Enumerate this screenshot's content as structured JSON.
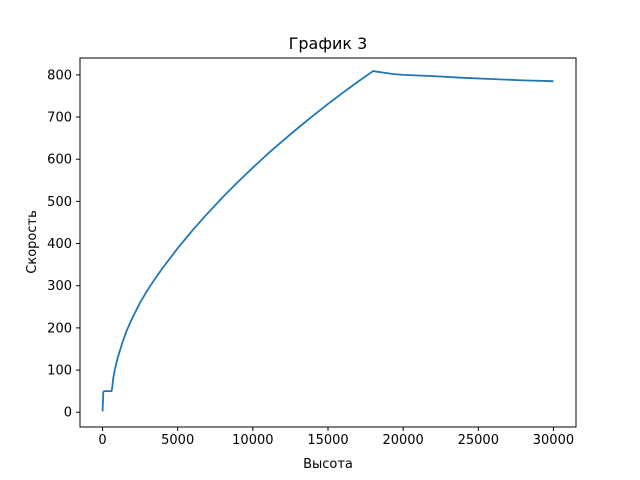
{
  "chart_data": {
    "type": "line",
    "title": "График 3",
    "xlabel": "Высота",
    "ylabel": "Скорость",
    "xlim": [
      -1500,
      31500
    ],
    "ylim": [
      -35,
      840
    ],
    "xticks": [
      0,
      5000,
      10000,
      15000,
      20000,
      25000,
      30000
    ],
    "yticks": [
      0,
      100,
      200,
      300,
      400,
      500,
      600,
      700,
      800
    ],
    "grid": false,
    "legend": "none",
    "series": [
      {
        "color": "#1f77b4",
        "x": [
          0,
          50,
          100,
          600,
          650,
          700,
          800,
          1000,
          1300,
          1600,
          2000,
          2500,
          3000,
          3500,
          4000,
          5000,
          6000,
          7000,
          8000,
          9000,
          10000,
          11000,
          12000,
          13000,
          14000,
          15000,
          16000,
          17000,
          18000,
          19300,
          20000,
          22000,
          24000,
          26000,
          28000,
          30000
        ],
        "y": [
          2,
          48,
          50,
          50,
          60,
          78,
          98,
          128,
          163,
          193,
          225,
          260,
          290,
          317,
          342,
          389,
          432,
          472,
          510,
          546,
          580,
          613,
          644,
          674,
          703,
          731,
          758,
          784,
          809,
          802,
          800,
          797,
          793,
          790,
          787,
          785
        ]
      }
    ]
  }
}
